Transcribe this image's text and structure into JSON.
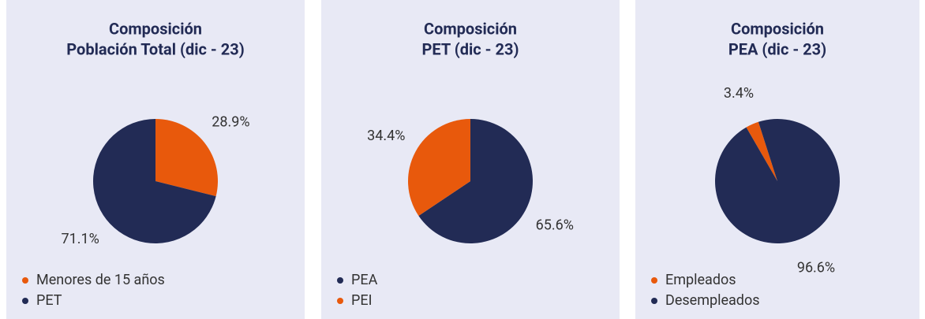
{
  "chart_data": [
    {
      "type": "pie",
      "title": [
        "Composición",
        "Población Total (dic - 23)"
      ],
      "categories": [
        "Menores de 15 años",
        "PET"
      ],
      "values": [
        28.9,
        71.1
      ],
      "value_labels": [
        "28.9%",
        "71.1%"
      ],
      "colors": [
        "#e8590c",
        "#222b55"
      ],
      "start_angle": 0
    },
    {
      "type": "pie",
      "title": [
        "Composición",
        "PET (dic - 23)"
      ],
      "categories": [
        "PEA",
        "PEI"
      ],
      "values": [
        65.6,
        34.4
      ],
      "value_labels": [
        "65.6%",
        "34.4%"
      ],
      "colors": [
        "#222b55",
        "#e8590c"
      ],
      "start_angle": 0
    },
    {
      "type": "pie",
      "title": [
        "Composición",
        "PEA (dic - 23)"
      ],
      "categories": [
        "Empleados",
        "Desempleados"
      ],
      "values": [
        3.4,
        96.6
      ],
      "value_labels": [
        "3.4%",
        "96.6%"
      ],
      "colors": [
        "#e8590c",
        "#222b55"
      ],
      "start_angle": -30
    }
  ]
}
